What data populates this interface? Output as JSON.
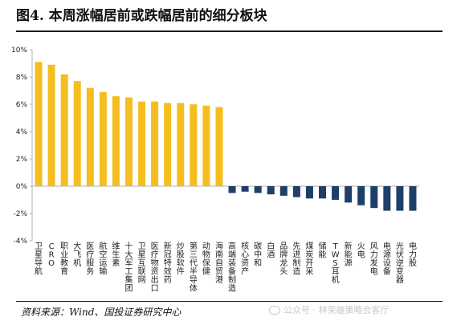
{
  "title": "图4. 本周涨幅居前或跌幅居前的细分板块",
  "source": "资料来源：Wind、国投证券研究中心",
  "watermark": "公众号 · 林荣雄策略会客厅",
  "colors": {
    "positive": "#F5BE1E",
    "negative": "#1F3F6B",
    "axis": "#b0b0b0"
  },
  "chart_data": {
    "type": "bar",
    "categories": [
      "卫星导航",
      "CRO",
      "职业教育",
      "大飞机",
      "医疗服务",
      "航空运输",
      "维生素",
      "十大军工集团",
      "卫星互联网",
      "医疗物资出口",
      "新冠特效药",
      "炒股软件",
      "第三代半导体",
      "动物保健",
      "海南自贸港",
      "高端装备制造",
      "核心资产",
      "碳中和",
      "白酒",
      "品牌龙头",
      "先进制造",
      "煤炭开采",
      "储能",
      "TWS耳机",
      "新能源",
      "火电",
      "风力发电",
      "电源设备",
      "光伏逆变器",
      "电力股"
    ],
    "values": [
      9.1,
      8.9,
      8.2,
      7.7,
      7.2,
      6.9,
      6.6,
      6.5,
      6.2,
      6.2,
      6.1,
      6.1,
      6.0,
      5.9,
      5.8,
      -0.5,
      -0.4,
      -0.5,
      -0.6,
      -0.7,
      -0.8,
      -0.9,
      -0.9,
      -1.0,
      -1.2,
      -1.4,
      -1.6,
      -1.8,
      -1.8,
      -1.8
    ],
    "ylim": [
      -4,
      10
    ],
    "yticks": [
      -4,
      -2,
      0,
      2,
      4,
      6,
      8,
      10
    ],
    "ytick_labels": [
      "-4%",
      "-2%",
      "0%",
      "2%",
      "4%",
      "6%",
      "8%",
      "10%"
    ],
    "xlabel": "",
    "ylabel": "",
    "grid": false,
    "legend": "none"
  }
}
